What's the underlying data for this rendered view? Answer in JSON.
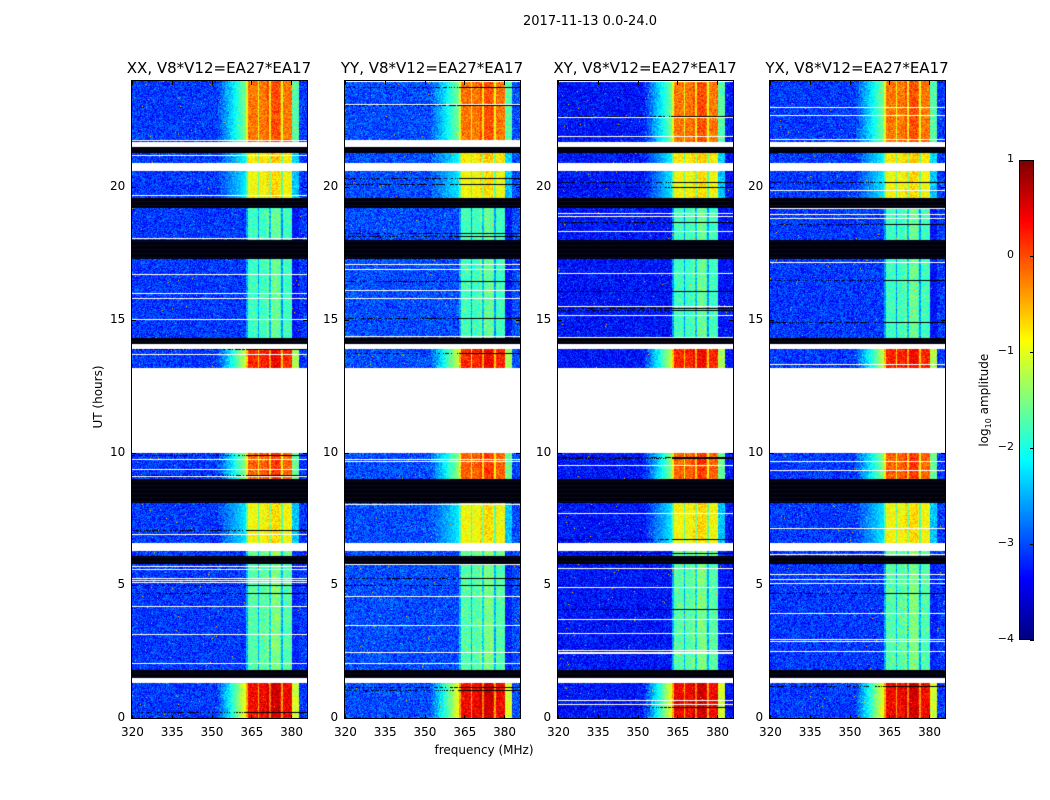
{
  "chart_data": {
    "type": "heatmap",
    "title": "2017-11-13 0.0-24.0",
    "panels": [
      {
        "title": "XX, V8*V12=EA27*EA17",
        "lowfreq_level": -3.1
      },
      {
        "title": "YY, V8*V12=EA27*EA17",
        "lowfreq_level": -3.0
      },
      {
        "title": "XY, V8*V12=EA27*EA17",
        "lowfreq_level": -3.3
      },
      {
        "title": "YX, V8*V12=EA27*EA17",
        "lowfreq_level": -3.1
      }
    ],
    "xlabel": "frequency (MHz)",
    "ylabel": "UT (hours)",
    "xlim": [
      320,
      386
    ],
    "ylim": [
      0,
      24
    ],
    "xticks": [
      "320",
      "335",
      "350",
      "365",
      "380"
    ],
    "yticks": [
      "0",
      "5",
      "10",
      "15",
      "20"
    ],
    "colorbar": {
      "label": "log10 amplitude",
      "label_main": "log",
      "label_sub": "10",
      "label_rest": " amplitude",
      "range": [
        -4,
        1
      ],
      "ticks": [
        "1",
        "0",
        "−1",
        "−2",
        "−3",
        "−4"
      ],
      "colormap": "jet"
    },
    "rfi_band_mhz": [
      363,
      381
    ],
    "segments": [
      {
        "t0": 0.0,
        "t1": 1.3,
        "kind": "data",
        "band_level": 0.4
      },
      {
        "t0": 1.3,
        "t1": 1.5,
        "kind": "blank"
      },
      {
        "t0": 1.5,
        "t1": 1.8,
        "kind": "flagged"
      },
      {
        "t0": 1.8,
        "t1": 5.8,
        "kind": "data",
        "band_level": -1.7
      },
      {
        "t0": 5.8,
        "t1": 6.1,
        "kind": "flagged"
      },
      {
        "t0": 6.1,
        "t1": 6.3,
        "kind": "data",
        "band_level": -1.6
      },
      {
        "t0": 6.3,
        "t1": 6.6,
        "kind": "blank"
      },
      {
        "t0": 6.6,
        "t1": 8.1,
        "kind": "data",
        "band_level": -0.9
      },
      {
        "t0": 8.1,
        "t1": 9.0,
        "kind": "flagged"
      },
      {
        "t0": 9.0,
        "t1": 10.0,
        "kind": "data",
        "band_level": -0.1
      },
      {
        "t0": 10.0,
        "t1": 13.2,
        "kind": "blank"
      },
      {
        "t0": 13.2,
        "t1": 13.9,
        "kind": "data",
        "band_level": 0.2
      },
      {
        "t0": 13.9,
        "t1": 14.1,
        "kind": "blank"
      },
      {
        "t0": 14.1,
        "t1": 14.3,
        "kind": "flagged"
      },
      {
        "t0": 14.3,
        "t1": 17.3,
        "kind": "data",
        "band_level": -1.8
      },
      {
        "t0": 17.3,
        "t1": 18.0,
        "kind": "flagged"
      },
      {
        "t0": 18.0,
        "t1": 19.2,
        "kind": "data",
        "band_level": -1.8
      },
      {
        "t0": 19.2,
        "t1": 19.6,
        "kind": "flagged"
      },
      {
        "t0": 19.6,
        "t1": 20.6,
        "kind": "data",
        "band_level": -0.9
      },
      {
        "t0": 20.6,
        "t1": 20.9,
        "kind": "blank"
      },
      {
        "t0": 20.9,
        "t1": 21.3,
        "kind": "data",
        "band_level": -0.8
      },
      {
        "t0": 21.3,
        "t1": 21.5,
        "kind": "flagged"
      },
      {
        "t0": 21.5,
        "t1": 21.7,
        "kind": "blank"
      },
      {
        "t0": 21.7,
        "t1": 24.0,
        "kind": "data",
        "band_level": -0.2
      }
    ]
  }
}
